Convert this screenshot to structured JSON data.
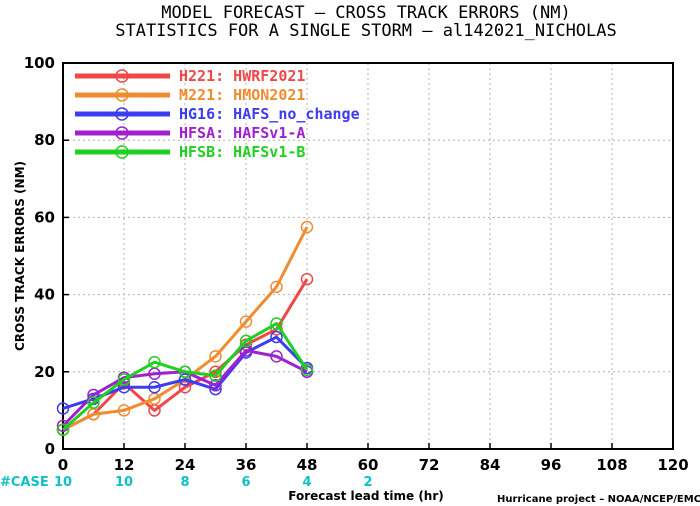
{
  "title_line1": "MODEL FORECAST – CROSS TRACK ERRORS (NM)",
  "title_line2": "STATISTICS FOR A SINGLE STORM – al142021_NICHOLAS",
  "credit": "Hurricane project – NOAA/NCEP/EMC",
  "case_label": "#CASE",
  "case_color": "#10c0c8",
  "chart_data": {
    "type": "line",
    "xlabel": "Forecast lead time (hr)",
    "ylabel": "CROSS TRACK ERRORS (NM)",
    "xlim": [
      0,
      120
    ],
    "ylim": [
      0,
      100
    ],
    "xticks": [
      0,
      12,
      24,
      36,
      48,
      60,
      72,
      84,
      96,
      108,
      120
    ],
    "yticks": [
      0,
      20,
      40,
      60,
      80,
      100
    ],
    "grid": true,
    "legend_position": "top-left",
    "case_counts": [
      {
        "x": 0,
        "n": "10"
      },
      {
        "x": 12,
        "n": "10"
      },
      {
        "x": 24,
        "n": "8"
      },
      {
        "x": 36,
        "n": "6"
      },
      {
        "x": 48,
        "n": "4"
      },
      {
        "x": 60,
        "n": "2"
      }
    ],
    "series": [
      {
        "name": "H221: HWRF2021",
        "color": "#f04848",
        "x": [
          0,
          6,
          12,
          18,
          24,
          30,
          36,
          42,
          48
        ],
        "y": [
          5,
          9,
          17,
          10,
          16,
          20,
          27,
          31,
          44
        ]
      },
      {
        "name": "M221: HMON2021",
        "color": "#f08c30",
        "x": [
          0,
          6,
          12,
          18,
          24,
          30,
          36,
          42,
          48
        ],
        "y": [
          5,
          9,
          10,
          13,
          18,
          24,
          33,
          42,
          57.5
        ]
      },
      {
        "name": "HG16: HAFS_no_change",
        "color": "#3c3cf0",
        "x": [
          0,
          6,
          12,
          18,
          24,
          30,
          36,
          42,
          48
        ],
        "y": [
          10.5,
          13,
          16,
          16,
          18,
          15.5,
          25,
          29,
          21
        ]
      },
      {
        "name": "HFSA: HAFSv1-A",
        "color": "#a020d0",
        "x": [
          0,
          6,
          12,
          18,
          24,
          30,
          36,
          42,
          48
        ],
        "y": [
          6,
          14,
          18.5,
          19.5,
          20,
          16.5,
          25.5,
          24,
          20
        ]
      },
      {
        "name": "HFSB: HAFSv1-B",
        "color": "#20d020",
        "x": [
          0,
          6,
          12,
          18,
          24,
          30,
          36,
          42,
          48
        ],
        "y": [
          5,
          12,
          18,
          22.5,
          20,
          19,
          28,
          32.5,
          20.5
        ]
      }
    ]
  }
}
